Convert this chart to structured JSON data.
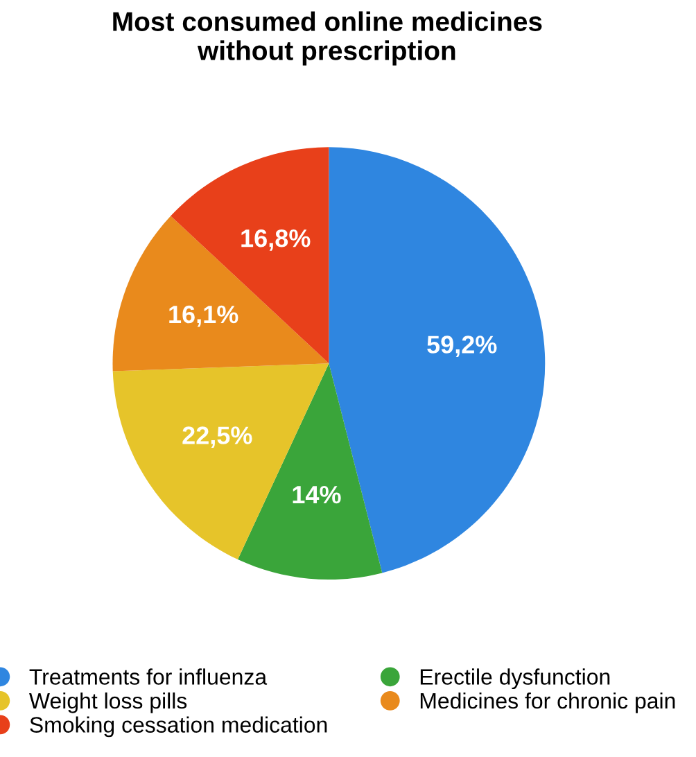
{
  "chart_data": {
    "type": "pie",
    "title": "Most consumed online medicines\nwithout prescription",
    "categories": [
      "Treatments for influenza",
      "Erectile dysfunction",
      "Weight loss pills",
      "Medicines for chronic pain",
      "Smoking cessation medication"
    ],
    "values": [
      59.2,
      14,
      22.5,
      16.1,
      16.8
    ],
    "value_labels": [
      "59,2%",
      "14%",
      "22,5%",
      "16,1%",
      "16,8%"
    ],
    "colors": [
      "#2f86e0",
      "#3aa53a",
      "#e6c42a",
      "#e98a1c",
      "#e8401a"
    ],
    "legend": "bottom"
  }
}
